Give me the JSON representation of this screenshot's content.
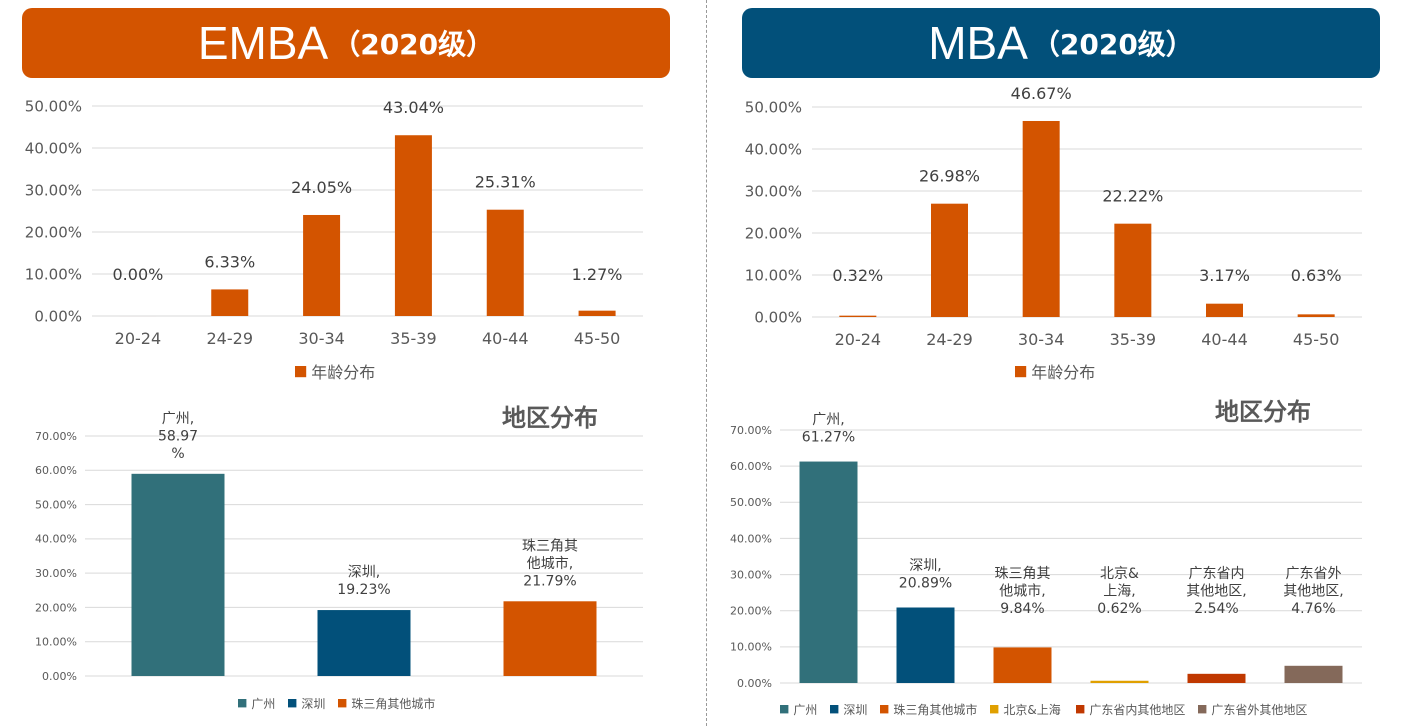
{
  "headers": {
    "emba": {
      "main": "EMBA",
      "sub": "（2020级）",
      "color": "#d35400"
    },
    "mba": {
      "main": "MBA",
      "sub": "（2020级）",
      "color": "#02507a"
    }
  },
  "chart_data": [
    {
      "id": "emba-age",
      "type": "bar",
      "title": "",
      "categories": [
        "20-24",
        "24-29",
        "30-34",
        "35-39",
        "40-44",
        "45-50"
      ],
      "values": [
        0.0,
        6.33,
        24.05,
        43.04,
        25.31,
        1.27
      ],
      "data_labels": [
        [
          "0.00%"
        ],
        [
          "6.33%"
        ],
        [
          "24.05%"
        ],
        [
          "43.04%"
        ],
        [
          "25.31%"
        ],
        [
          "1.27%"
        ]
      ],
      "colors": [
        "#d35400"
      ],
      "ylim": [
        0,
        50
      ],
      "yticks": [
        "0.00%",
        "10.00%",
        "20.00%",
        "30.00%",
        "40.00%",
        "50.00%"
      ],
      "legend": [
        {
          "label": "年龄分布",
          "color": "#d35400"
        }
      ],
      "legend_position": "bottom",
      "grid": true
    },
    {
      "id": "mba-age",
      "type": "bar",
      "title": "",
      "categories": [
        "20-24",
        "24-29",
        "30-34",
        "35-39",
        "40-44",
        "45-50"
      ],
      "values": [
        0.32,
        26.98,
        46.67,
        22.22,
        3.17,
        0.63
      ],
      "data_labels": [
        [
          "0.32%"
        ],
        [
          "26.98%"
        ],
        [
          "46.67%"
        ],
        [
          "22.22%"
        ],
        [
          "3.17%"
        ],
        [
          "0.63%"
        ]
      ],
      "colors": [
        "#d35400"
      ],
      "ylim": [
        0,
        50
      ],
      "yticks": [
        "0.00%",
        "10.00%",
        "20.00%",
        "30.00%",
        "40.00%",
        "50.00%"
      ],
      "legend": [
        {
          "label": "年龄分布",
          "color": "#d35400"
        }
      ],
      "legend_position": "bottom",
      "grid": true
    },
    {
      "id": "emba-region",
      "type": "bar",
      "title": "地区分布",
      "categories": [
        "广州",
        "深圳",
        "珠三角其他城市"
      ],
      "values": [
        58.97,
        19.23,
        21.79
      ],
      "data_labels": [
        [
          "广州,",
          "58.97",
          "%"
        ],
        [
          "深圳,",
          "19.23%"
        ],
        [
          "珠三角其",
          "他城市,",
          "21.79%"
        ]
      ],
      "colors": [
        "#31707a",
        "#02507a",
        "#d35400"
      ],
      "ylim": [
        0,
        70
      ],
      "yticks": [
        "0.00%",
        "10.00%",
        "20.00%",
        "30.00%",
        "40.00%",
        "50.00%",
        "60.00%",
        "70.00%"
      ],
      "legend": [
        {
          "label": "广州",
          "color": "#31707a"
        },
        {
          "label": "深圳",
          "color": "#02507a"
        },
        {
          "label": "珠三角其他城市",
          "color": "#d35400"
        }
      ],
      "legend_position": "bottom",
      "grid": true
    },
    {
      "id": "mba-region",
      "type": "bar",
      "title": "地区分布",
      "categories": [
        "广州",
        "深圳",
        "珠三角其他城市",
        "北京&上海",
        "广东省内其他地区",
        "广东省外其他地区"
      ],
      "values": [
        61.27,
        20.89,
        9.84,
        0.62,
        2.54,
        4.76
      ],
      "data_labels": [
        [
          "广州,",
          "61.27%"
        ],
        [
          "深圳,",
          "20.89%"
        ],
        [
          "珠三角其",
          "他城市,",
          "9.84%"
        ],
        [
          "北京&",
          "上海,",
          "0.62%"
        ],
        [
          "广东省内",
          "其他地区,",
          "2.54%"
        ],
        [
          "广东省外",
          "其他地区,",
          "4.76%"
        ]
      ],
      "colors": [
        "#31707a",
        "#02507a",
        "#d35400",
        "#e0a000",
        "#c03800",
        "#84695a"
      ],
      "ylim": [
        0,
        70
      ],
      "yticks": [
        "0.00%",
        "10.00%",
        "20.00%",
        "30.00%",
        "40.00%",
        "50.00%",
        "60.00%",
        "70.00%"
      ],
      "legend": [
        {
          "label": "广州",
          "color": "#31707a"
        },
        {
          "label": "深圳",
          "color": "#02507a"
        },
        {
          "label": "珠三角其他城市",
          "color": "#d35400"
        },
        {
          "label": "北京&上海",
          "color": "#e0a000"
        },
        {
          "label": "广东省内其他地区",
          "color": "#c03800"
        },
        {
          "label": "广东省外其他地区",
          "color": "#84695a"
        }
      ],
      "legend_position": "bottom",
      "grid": true
    }
  ]
}
